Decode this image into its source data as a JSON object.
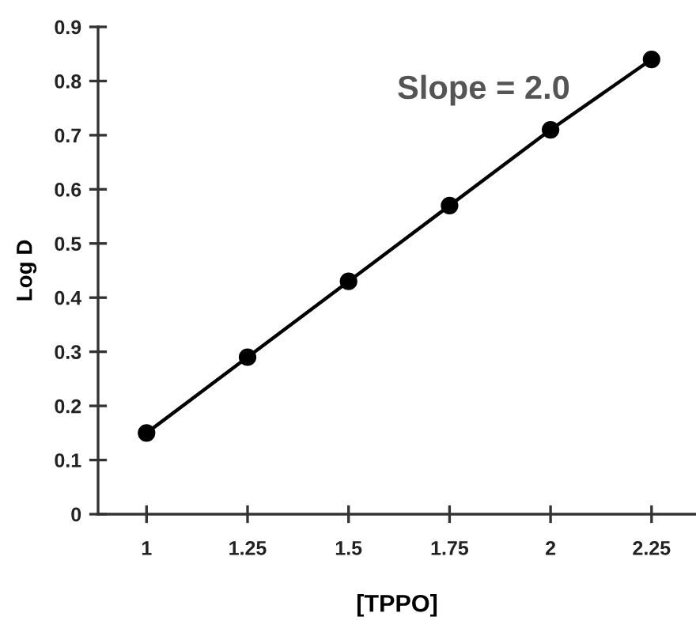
{
  "chart_data": {
    "type": "line",
    "xlabel": "[TPPO]",
    "ylabel": "Log D",
    "annotations": [
      "Slope = 2.0"
    ],
    "x": [
      1,
      1.25,
      1.5,
      1.75,
      2,
      2.25
    ],
    "series": [
      {
        "color": "#000000",
        "values": [
          0.15,
          0.29,
          0.43,
          0.57,
          0.71,
          0.84
        ]
      }
    ],
    "xlim": [
      0.88,
      2.36
    ],
    "ylim": [
      0,
      0.9
    ],
    "xticks": [
      1,
      1.25,
      1.5,
      1.75,
      2,
      2.25
    ],
    "yticks": [
      0,
      0.1,
      0.2,
      0.3,
      0.4,
      0.5,
      0.6,
      0.7,
      0.8,
      0.9
    ],
    "marker": "circle",
    "line_style": "solid",
    "grid": false,
    "legend": false
  }
}
